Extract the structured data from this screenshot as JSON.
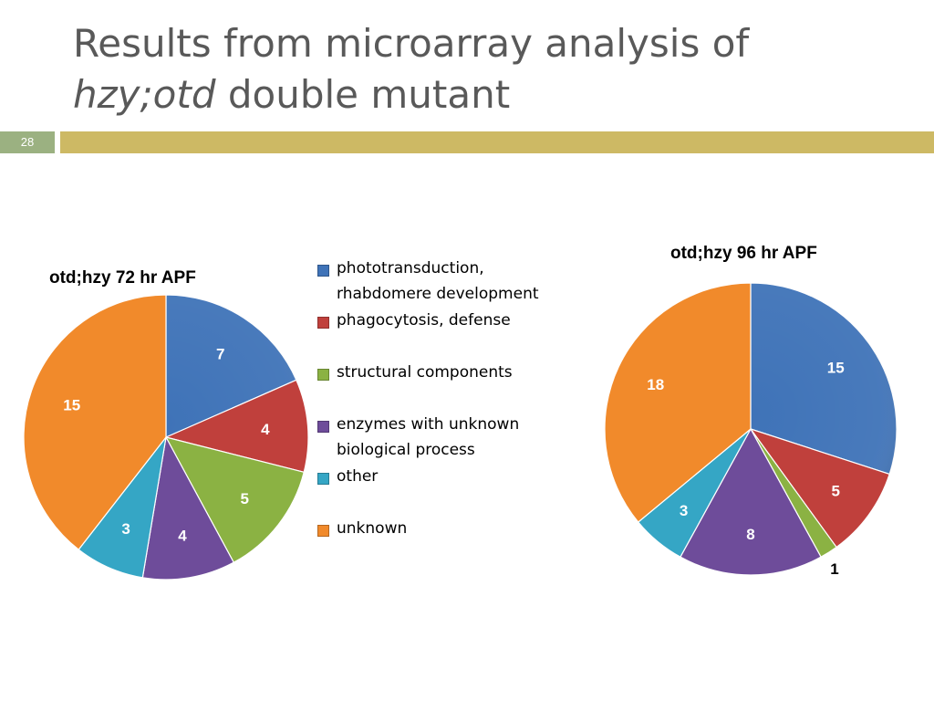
{
  "slide": {
    "title_line1": "Results from microarray analysis of",
    "title_line2_italic": "hzy;otd",
    "title_line2_rest": " double mutant",
    "slide_number": "28"
  },
  "colors": {
    "phototransduction": "#3f73b8",
    "phagocytosis": "#c0403c",
    "structural": "#8bb243",
    "enzymes": "#6e4c9a",
    "other": "#35a6c5",
    "unknown": "#f18a2b"
  },
  "chart_data": [
    {
      "type": "pie",
      "title": "otd;hzy 72 hr APF",
      "categories": [
        "phototransduction, rhabdomere development",
        "phagocytosis, defense",
        "structural components",
        "enzymes with unknown biological process",
        "other",
        "unknown"
      ],
      "values": [
        7,
        4,
        5,
        4,
        3,
        15
      ],
      "data_labels": [
        "7",
        "4",
        "5",
        "4",
        "3",
        "15"
      ],
      "legend": "right"
    },
    {
      "type": "pie",
      "title": "otd;hzy 96 hr APF",
      "categories": [
        "phototransduction, rhabdomere development",
        "phagocytosis, defense",
        "structural components",
        "enzymes with unknown biological process",
        "other",
        "unknown"
      ],
      "values": [
        15,
        5,
        1,
        8,
        3,
        18
      ],
      "data_labels": [
        "15",
        "5",
        "1",
        "8",
        "3",
        "18"
      ]
    }
  ],
  "legend": {
    "items": [
      {
        "label": "phototransduction, rhabdomere development",
        "color": "#3f73b8"
      },
      {
        "label": "phagocytosis, defense",
        "color": "#c0403c"
      },
      {
        "label": "structural components",
        "color": "#8bb243"
      },
      {
        "label": "enzymes with unknown biological process",
        "color": "#6e4c9a"
      },
      {
        "label": "other",
        "color": "#35a6c5"
      },
      {
        "label": "unknown",
        "color": "#f18a2b"
      }
    ]
  }
}
